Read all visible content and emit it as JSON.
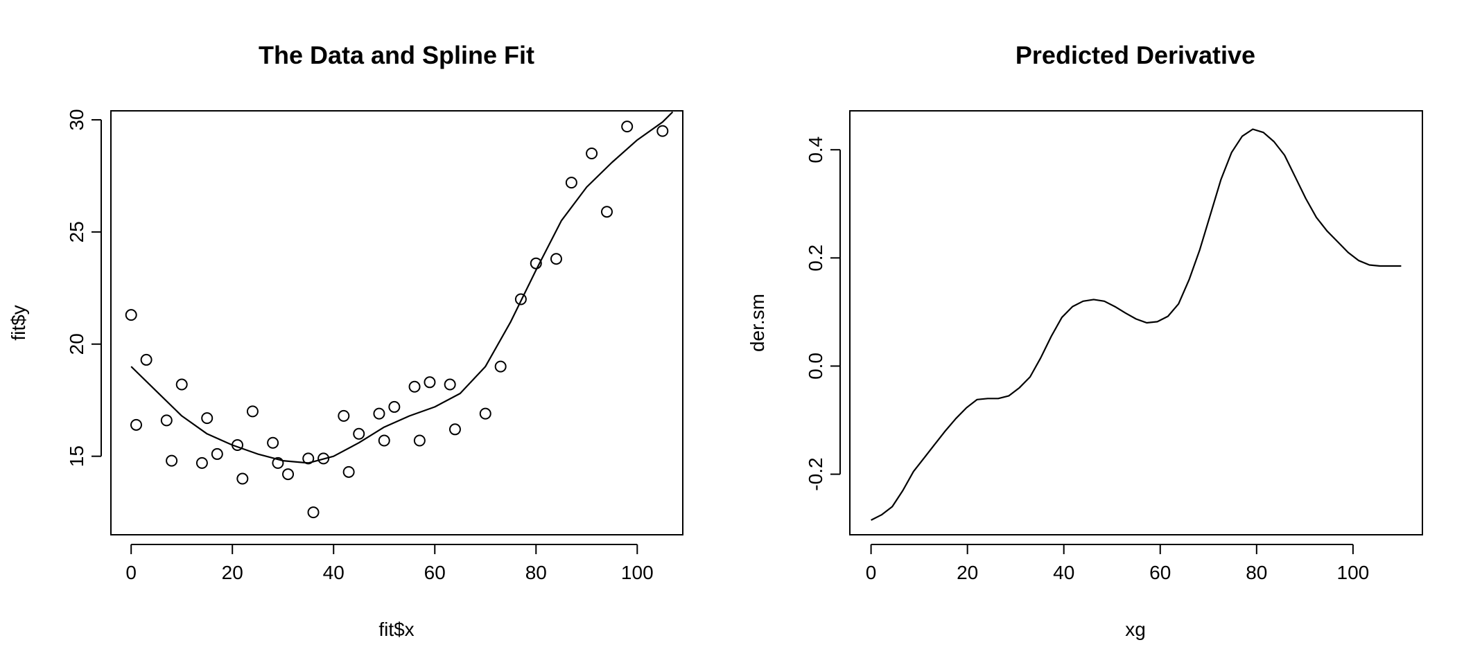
{
  "chart_data": [
    {
      "type": "scatter",
      "title": "The Data and Spline Fit",
      "xlabel": "fit$x",
      "ylabel": "fit$y",
      "xlim": [
        -4,
        109
      ],
      "ylim": [
        11.5,
        30.4
      ],
      "xticks": [
        0,
        20,
        40,
        60,
        80,
        100
      ],
      "yticks": [
        15,
        20,
        25,
        30
      ],
      "grid": false,
      "series": [
        {
          "kind": "points",
          "x": [
            0,
            1,
            3,
            7,
            8,
            10,
            14,
            15,
            17,
            21,
            22,
            24,
            28,
            29,
            31,
            35,
            36,
            38,
            42,
            43,
            45,
            49,
            50,
            52,
            56,
            57,
            59,
            63,
            64,
            70,
            73,
            77,
            80,
            84,
            87,
            91,
            94,
            98,
            105
          ],
          "y": [
            21.3,
            16.4,
            19.3,
            16.6,
            14.8,
            18.2,
            14.7,
            16.7,
            15.1,
            15.5,
            14.0,
            17.0,
            15.6,
            14.7,
            14.2,
            14.9,
            12.5,
            14.9,
            16.8,
            14.3,
            16.0,
            16.9,
            15.7,
            17.2,
            18.1,
            15.7,
            18.3,
            18.2,
            16.2,
            16.9,
            19.0,
            22.0,
            23.6,
            23.8,
            27.2,
            28.5,
            25.9,
            29.7,
            29.5
          ]
        },
        {
          "kind": "line",
          "x": [
            0,
            5,
            10,
            15,
            20,
            25,
            30,
            35,
            40,
            45,
            50,
            55,
            60,
            65,
            70,
            75,
            80,
            85,
            90,
            95,
            100,
            105,
            107
          ],
          "y": [
            19.0,
            17.9,
            16.8,
            16.0,
            15.5,
            15.1,
            14.8,
            14.7,
            15.0,
            15.6,
            16.3,
            16.8,
            17.2,
            17.8,
            19.0,
            21.0,
            23.3,
            25.5,
            27.0,
            28.1,
            29.1,
            29.9,
            30.35
          ]
        }
      ]
    },
    {
      "type": "line",
      "title": "Predicted Derivative",
      "xlabel": "xg",
      "ylabel": "der.sm",
      "xlim": [
        -4.4,
        114.4
      ],
      "ylim": [
        -0.312,
        0.472
      ],
      "xticks": [
        0,
        20,
        40,
        60,
        80,
        100
      ],
      "yticks": [
        -0.2,
        0.0,
        0.2,
        0.4
      ],
      "ytick_labels": [
        "-0.2",
        "0.0",
        "0.2",
        "0.4"
      ],
      "grid": false,
      "series": [
        {
          "kind": "line",
          "x": [
            0,
            2.2,
            4.4,
            6.6,
            8.8,
            11,
            13.2,
            15.4,
            17.6,
            19.8,
            22,
            24.2,
            26.4,
            28.6,
            30.8,
            33,
            35.2,
            37.4,
            39.6,
            41.8,
            44,
            46.2,
            48.4,
            50.6,
            52.8,
            55,
            57.2,
            59.4,
            61.6,
            63.8,
            66,
            68.2,
            70.4,
            72.6,
            74.8,
            77,
            79.2,
            81.4,
            83.6,
            85.8,
            88,
            90.2,
            92.4,
            94.6,
            96.8,
            99,
            101.2,
            103.4,
            105.6,
            107.8,
            110
          ],
          "y": [
            -0.285,
            -0.275,
            -0.26,
            -0.23,
            -0.195,
            -0.17,
            -0.145,
            -0.12,
            -0.097,
            -0.077,
            -0.062,
            -0.06,
            -0.06,
            -0.055,
            -0.04,
            -0.02,
            0.015,
            0.055,
            0.09,
            0.11,
            0.12,
            0.123,
            0.12,
            0.11,
            0.098,
            0.087,
            0.08,
            0.082,
            0.092,
            0.115,
            0.16,
            0.215,
            0.28,
            0.345,
            0.395,
            0.425,
            0.438,
            0.432,
            0.415,
            0.39,
            0.35,
            0.31,
            0.275,
            0.25,
            0.23,
            0.21,
            0.195,
            0.187,
            0.185,
            0.185,
            0.185
          ]
        }
      ]
    }
  ]
}
